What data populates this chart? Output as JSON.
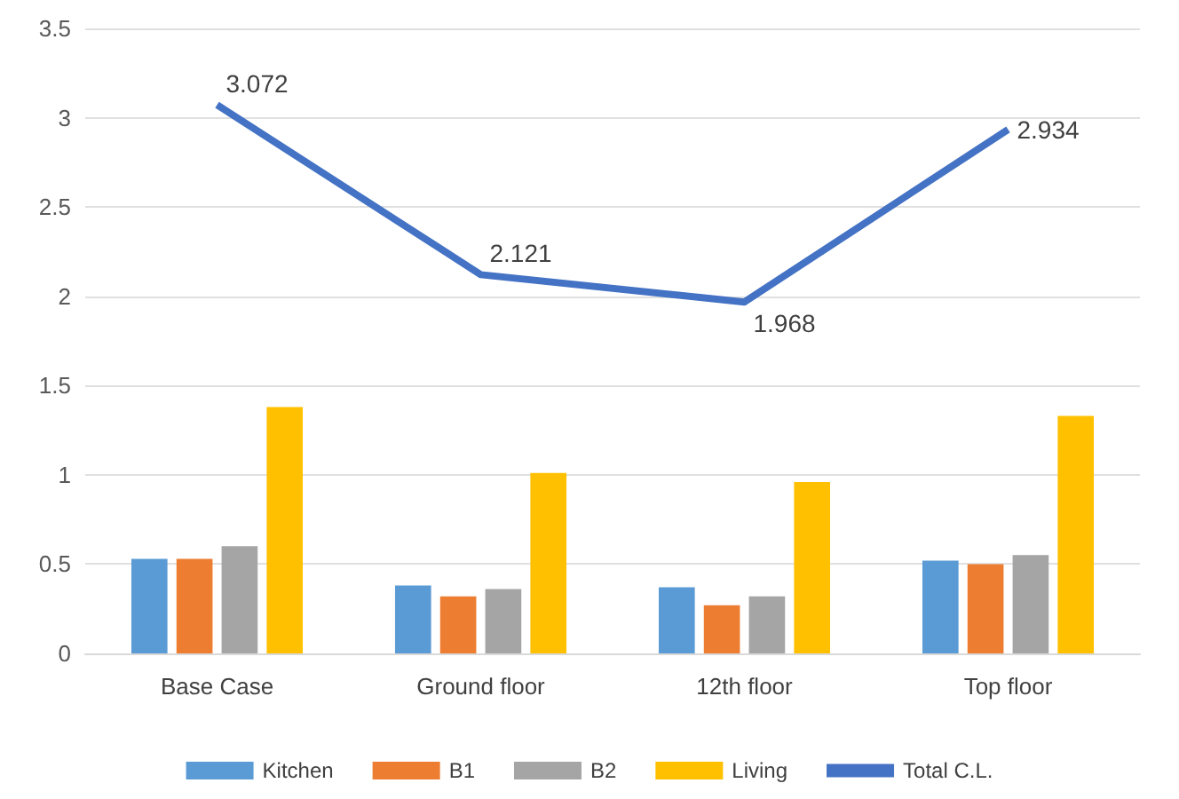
{
  "chart_data": {
    "type": "bar",
    "categories": [
      "Base Case",
      "Ground floor",
      "12th floor",
      "Top floor"
    ],
    "series": [
      {
        "name": "Kitchen",
        "color": "#5b9bd5",
        "values": [
          0.53,
          0.38,
          0.37,
          0.52
        ]
      },
      {
        "name": "B1",
        "color": "#ed7d31",
        "values": [
          0.53,
          0.32,
          0.27,
          0.5
        ]
      },
      {
        "name": "B2",
        "color": "#a5a5a5",
        "values": [
          0.6,
          0.36,
          0.32,
          0.55
        ]
      },
      {
        "name": "Living",
        "color": "#ffc000",
        "values": [
          1.38,
          1.01,
          0.96,
          1.33
        ]
      },
      {
        "name": "Total C.L.",
        "type": "line",
        "color": "#4472c4",
        "values": [
          3.072,
          2.121,
          1.968,
          2.934
        ],
        "value_labels": [
          "3.072",
          "2.121",
          "1.968",
          "2.934"
        ],
        "marker": "none"
      }
    ],
    "ylim": [
      0,
      3.5
    ],
    "yticks": [
      0,
      0.5,
      1,
      1.5,
      2,
      2.5,
      3,
      3.5
    ],
    "grid": "y",
    "legend": "bottom"
  }
}
